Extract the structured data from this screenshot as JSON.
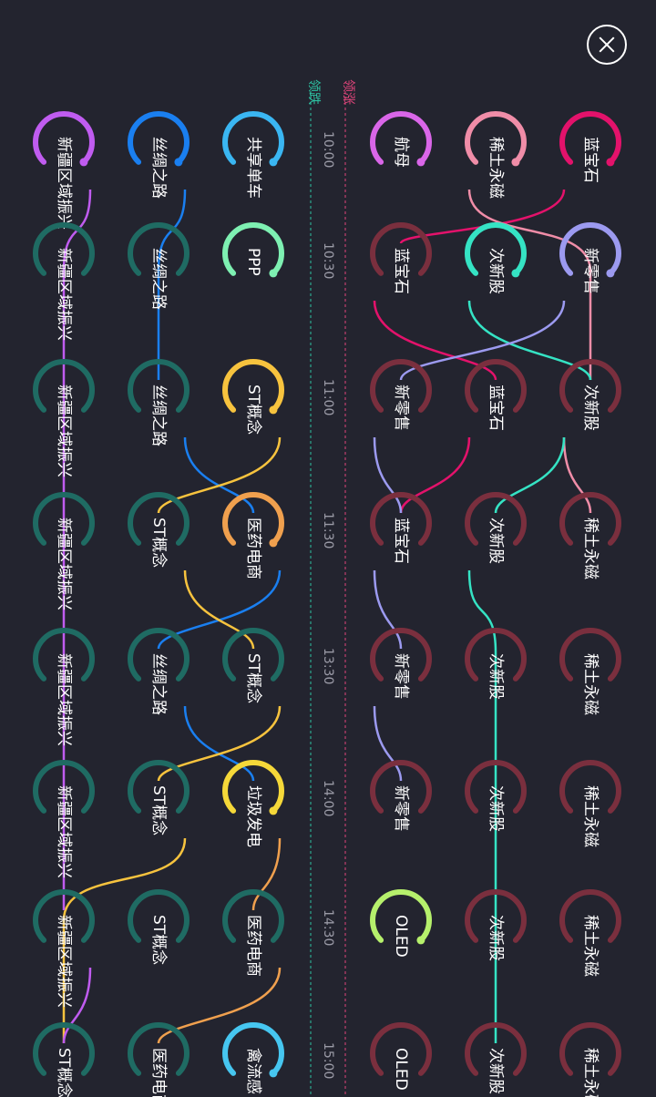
{
  "header": {
    "rise_label": "领涨",
    "fall_label": "领跌",
    "close_icon": "close-icon"
  },
  "colors": {
    "background": "#23242f",
    "rise_axis": "#e0457b",
    "fall_axis": "#2ec3a3",
    "rise_track": "#7a2f3e",
    "fall_track": "#1f6b63",
    "text": "#ffffff",
    "time": "#9a9aa6"
  },
  "columns": [
    {
      "time": "10:00",
      "rise": [
        {
          "name": "航母",
          "highlight": true,
          "color": "#d966e8"
        },
        {
          "name": "稀土永磁",
          "highlight": true,
          "color": "#f08da8"
        },
        {
          "name": "蓝宝石",
          "highlight": true,
          "color": "#e3126b"
        }
      ],
      "fall": [
        {
          "name": "共享单车",
          "highlight": true,
          "color": "#3ab6f2"
        },
        {
          "name": "丝绸之路",
          "highlight": true,
          "color": "#1a7ff0"
        },
        {
          "name": "新疆区域振兴",
          "highlight": true,
          "color": "#c05cf0"
        }
      ]
    },
    {
      "time": "10:30",
      "rise": [
        {
          "name": "蓝宝石",
          "highlight": false
        },
        {
          "name": "次新股",
          "highlight": true,
          "color": "#35e3c4"
        },
        {
          "name": "新零售",
          "highlight": true,
          "color": "#9c9af0"
        }
      ],
      "fall": [
        {
          "name": "PPP",
          "highlight": true,
          "color": "#7ef0b2"
        },
        {
          "name": "丝绸之路",
          "highlight": false
        },
        {
          "name": "新疆区域振兴",
          "highlight": false
        }
      ]
    },
    {
      "time": "11:00",
      "rise": [
        {
          "name": "新零售",
          "highlight": false
        },
        {
          "name": "蓝宝石",
          "highlight": false
        },
        {
          "name": "次新股",
          "highlight": false
        }
      ],
      "fall": [
        {
          "name": "ST概念",
          "highlight": true,
          "color": "#f7c33e"
        },
        {
          "name": "丝绸之路",
          "highlight": false
        },
        {
          "name": "新疆区域振兴",
          "highlight": false
        }
      ]
    },
    {
      "time": "11:30",
      "rise": [
        {
          "name": "蓝宝石",
          "highlight": false
        },
        {
          "name": "次新股",
          "highlight": false
        },
        {
          "name": "稀土永磁",
          "highlight": false
        }
      ],
      "fall": [
        {
          "name": "医药电商",
          "highlight": true,
          "color": "#f0a04e"
        },
        {
          "name": "ST概念",
          "highlight": false
        },
        {
          "name": "新疆区域振兴",
          "highlight": false
        }
      ]
    },
    {
      "time": "13:30",
      "rise": [
        {
          "name": "新零售",
          "highlight": false
        },
        {
          "name": "次新股",
          "highlight": false
        },
        {
          "name": "稀土永磁",
          "highlight": false
        }
      ],
      "fall": [
        {
          "name": "ST概念",
          "highlight": false
        },
        {
          "name": "丝绸之路",
          "highlight": false
        },
        {
          "name": "新疆区域振兴",
          "highlight": false
        }
      ]
    },
    {
      "time": "14:00",
      "rise": [
        {
          "name": "新零售",
          "highlight": false
        },
        {
          "name": "次新股",
          "highlight": false
        },
        {
          "name": "稀土永磁",
          "highlight": false
        }
      ],
      "fall": [
        {
          "name": "垃圾发电",
          "highlight": true,
          "color": "#f5d839"
        },
        {
          "name": "ST概念",
          "highlight": false
        },
        {
          "name": "新疆区域振兴",
          "highlight": false
        }
      ]
    },
    {
      "time": "14:30",
      "rise": [
        {
          "name": "OLED",
          "highlight": true,
          "color": "#b6f06c"
        },
        {
          "name": "次新股",
          "highlight": false
        },
        {
          "name": "稀土永磁",
          "highlight": false
        }
      ],
      "fall": [
        {
          "name": "医药电商",
          "highlight": false
        },
        {
          "name": "ST概念",
          "highlight": false
        },
        {
          "name": "新疆区域振兴",
          "highlight": false
        }
      ]
    },
    {
      "time": "15:00",
      "rise": [
        {
          "name": "OLED",
          "highlight": false
        },
        {
          "name": "次新股",
          "highlight": false
        },
        {
          "name": "稀土永磁",
          "highlight": false
        }
      ],
      "fall": [
        {
          "name": "禽流感",
          "highlight": true,
          "color": "#46c6f0"
        },
        {
          "name": "医药电商",
          "highlight": false
        },
        {
          "name": "ST概念",
          "highlight": false
        }
      ]
    }
  ],
  "flows": [
    {
      "color": "#e3126b",
      "path": [
        [
          0,
          "r",
          2
        ],
        [
          1,
          "r",
          0
        ],
        [
          2,
          "r",
          1
        ],
        [
          3,
          "r",
          0
        ]
      ]
    },
    {
      "color": "#f08da8",
      "path": [
        [
          0,
          "r",
          1
        ],
        [
          2,
          "r",
          2
        ],
        [
          3,
          "r",
          2
        ]
      ]
    },
    {
      "color": "#35e3c4",
      "path": [
        [
          1,
          "r",
          1
        ],
        [
          2,
          "r",
          2
        ],
        [
          3,
          "r",
          1
        ],
        [
          7,
          "r",
          1
        ]
      ]
    },
    {
      "color": "#9c9af0",
      "path": [
        [
          1,
          "r",
          2
        ],
        [
          2,
          "r",
          0
        ],
        [
          3,
          "r",
          0
        ],
        [
          4,
          "r",
          0
        ],
        [
          5,
          "r",
          0
        ]
      ]
    },
    {
      "color": "#1a7ff0",
      "path": [
        [
          0,
          "f",
          1
        ],
        [
          2,
          "f",
          1
        ],
        [
          3,
          "f",
          0
        ],
        [
          4,
          "f",
          1
        ],
        [
          5,
          "f",
          0
        ]
      ]
    },
    {
      "color": "#f7c33e",
      "path": [
        [
          2,
          "f",
          0
        ],
        [
          3,
          "f",
          1
        ],
        [
          4,
          "f",
          0
        ],
        [
          5,
          "f",
          1
        ],
        [
          7,
          "f",
          2
        ]
      ]
    },
    {
      "color": "#f0a04e",
      "path": [
        [
          5,
          "f",
          0
        ],
        [
          6,
          "f",
          0
        ],
        [
          7,
          "f",
          1
        ]
      ]
    },
    {
      "color": "#c05cf0",
      "path": [
        [
          0,
          "f",
          2
        ],
        [
          6,
          "f",
          2
        ],
        [
          7,
          "f",
          2
        ]
      ]
    }
  ]
}
